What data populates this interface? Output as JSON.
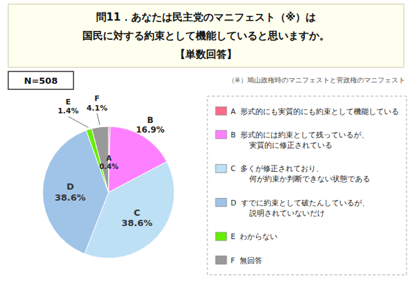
{
  "chart_data": {
    "type": "pie",
    "title": "問11．あなたは民主党のマニフェスト（※）は\n国民に対する約束として機能していると思いますか。",
    "subtitle": "【単数回答】",
    "annotations": [
      "（※）鳩山政権時のマニフェストと菅政権のマニフェスト",
      "N=508"
    ],
    "categories": [
      "A",
      "B",
      "C",
      "D",
      "E",
      "F"
    ],
    "values": [
      0.4,
      16.9,
      38.6,
      38.6,
      1.4,
      4.1
    ],
    "value_labels": [
      "0.4%",
      "16.9%",
      "38.6%",
      "38.6%",
      "1.4%",
      "4.1%"
    ],
    "colors": [
      "#FF6B8A",
      "#FF80FF",
      "#BDE0F5",
      "#A0C4E8",
      "#66EE00",
      "#999999"
    ],
    "legend_labels": [
      "A  形式的にも実質的にも約束として機能している",
      "B  形式的には約束として残っているが、\n        実質的に修正されている",
      "C  多くが修正されており、\n        何が約束か判断できない状態である",
      "D  すでに約束として破たんしているが、\n        説明されていないだけ",
      "E  わからない",
      "F  無回答"
    ],
    "legend": "right",
    "data_labels": true
  }
}
